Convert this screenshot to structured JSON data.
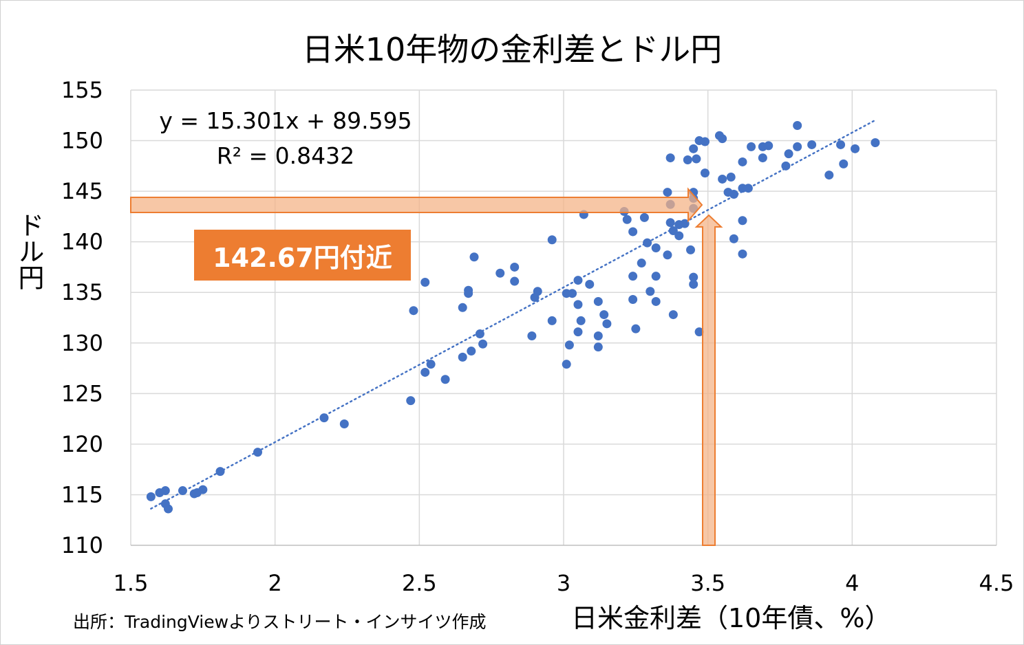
{
  "chart_data": {
    "type": "scatter",
    "title": "日米10年物の金利差とドル円",
    "xlabel": "日米金利差（10年債、%）",
    "ylabel": "ドル円",
    "xlim": [
      1.5,
      4.5
    ],
    "ylim": [
      110,
      155
    ],
    "xticks": [
      "1.5",
      "2",
      "2.5",
      "3",
      "3.5",
      "4",
      "4.5"
    ],
    "xtick_values": [
      1.5,
      2,
      2.5,
      3,
      3.5,
      4,
      4.5
    ],
    "yticks": [
      "155",
      "150",
      "145",
      "140",
      "135",
      "130",
      "125",
      "120",
      "115",
      "110"
    ],
    "ytick_values": [
      155,
      150,
      145,
      140,
      135,
      130,
      125,
      120,
      115,
      110
    ],
    "grid": true,
    "marker_color": "#4472C4",
    "trendline": {
      "slope": 15.301,
      "intercept": 89.595,
      "x_range": [
        1.57,
        4.08
      ],
      "equation": "y = 15.301x + 89.595",
      "r2_label": "R² = 0.8432",
      "color": "#4472C4",
      "style": "dotted"
    },
    "annotation": {
      "label": "142.67円付近",
      "x": 3.5,
      "y": 143.9,
      "color": "#ED7D31",
      "fill": "#F4B183"
    },
    "source": "出所：TradingViewよりストリート・インサイツ作成",
    "points": [
      [
        1.57,
        114.8
      ],
      [
        1.6,
        115.2
      ],
      [
        1.62,
        115.4
      ],
      [
        1.62,
        114.1
      ],
      [
        1.63,
        113.6
      ],
      [
        1.68,
        115.4
      ],
      [
        1.72,
        115.1
      ],
      [
        1.73,
        115.2
      ],
      [
        1.75,
        115.5
      ],
      [
        1.81,
        117.3
      ],
      [
        1.94,
        119.2
      ],
      [
        2.17,
        122.6
      ],
      [
        2.24,
        122.0
      ],
      [
        2.47,
        124.3
      ],
      [
        2.48,
        133.2
      ],
      [
        2.52,
        136.0
      ],
      [
        2.52,
        127.1
      ],
      [
        2.54,
        127.9
      ],
      [
        2.59,
        126.4
      ],
      [
        2.65,
        133.5
      ],
      [
        2.65,
        128.6
      ],
      [
        2.67,
        135.2
      ],
      [
        2.67,
        134.9
      ],
      [
        2.68,
        129.2
      ],
      [
        2.69,
        138.5
      ],
      [
        2.71,
        130.9
      ],
      [
        2.72,
        129.9
      ],
      [
        2.78,
        136.9
      ],
      [
        2.83,
        137.5
      ],
      [
        2.83,
        136.1
      ],
      [
        2.89,
        130.7
      ],
      [
        2.9,
        134.5
      ],
      [
        2.91,
        135.1
      ],
      [
        2.96,
        140.2
      ],
      [
        2.96,
        132.2
      ],
      [
        3.01,
        127.9
      ],
      [
        3.01,
        134.9
      ],
      [
        3.02,
        129.8
      ],
      [
        3.03,
        134.9
      ],
      [
        3.05,
        136.2
      ],
      [
        3.05,
        133.8
      ],
      [
        3.06,
        132.2
      ],
      [
        3.05,
        131.1
      ],
      [
        3.07,
        142.7
      ],
      [
        3.09,
        135.8
      ],
      [
        3.12,
        134.1
      ],
      [
        3.12,
        130.7
      ],
      [
        3.12,
        129.6
      ],
      [
        3.14,
        132.8
      ],
      [
        3.15,
        131.9
      ],
      [
        3.37,
        148.3
      ],
      [
        3.43,
        148.1
      ],
      [
        3.46,
        148.2
      ],
      [
        3.45,
        149.2
      ],
      [
        3.47,
        150.0
      ],
      [
        3.49,
        149.9
      ],
      [
        3.54,
        150.5
      ],
      [
        3.55,
        150.2
      ],
      [
        3.49,
        146.8
      ],
      [
        3.36,
        144.9
      ],
      [
        3.45,
        144.9
      ],
      [
        3.37,
        143.7
      ],
      [
        3.45,
        144.3
      ],
      [
        3.45,
        143.3
      ],
      [
        3.21,
        143.0
      ],
      [
        3.22,
        142.2
      ],
      [
        3.28,
        142.4
      ],
      [
        3.24,
        141.0
      ],
      [
        3.37,
        141.9
      ],
      [
        3.4,
        141.7
      ],
      [
        3.42,
        141.8
      ],
      [
        3.38,
        141.1
      ],
      [
        3.4,
        140.6
      ],
      [
        3.29,
        139.9
      ],
      [
        3.32,
        139.4
      ],
      [
        3.36,
        138.7
      ],
      [
        3.44,
        139.2
      ],
      [
        3.27,
        137.9
      ],
      [
        3.24,
        136.6
      ],
      [
        3.32,
        136.6
      ],
      [
        3.45,
        136.5
      ],
      [
        3.45,
        135.8
      ],
      [
        3.3,
        135.1
      ],
      [
        3.24,
        134.3
      ],
      [
        3.32,
        134.1
      ],
      [
        3.38,
        132.8
      ],
      [
        3.25,
        131.4
      ],
      [
        3.47,
        131.1
      ],
      [
        3.62,
        142.1
      ],
      [
        3.59,
        140.3
      ],
      [
        3.62,
        138.8
      ],
      [
        3.55,
        146.2
      ],
      [
        3.58,
        146.4
      ],
      [
        3.57,
        144.9
      ],
      [
        3.59,
        144.7
      ],
      [
        3.62,
        145.3
      ],
      [
        3.64,
        145.3
      ],
      [
        3.62,
        147.9
      ],
      [
        3.65,
        149.4
      ],
      [
        3.69,
        149.4
      ],
      [
        3.71,
        149.5
      ],
      [
        3.69,
        148.3
      ],
      [
        3.78,
        148.7
      ],
      [
        3.77,
        147.5
      ],
      [
        3.81,
        149.4
      ],
      [
        3.81,
        151.5
      ],
      [
        3.86,
        149.6
      ],
      [
        3.96,
        149.6
      ],
      [
        4.01,
        149.2
      ],
      [
        3.97,
        147.7
      ],
      [
        3.92,
        146.6
      ],
      [
        4.08,
        149.8
      ]
    ]
  }
}
